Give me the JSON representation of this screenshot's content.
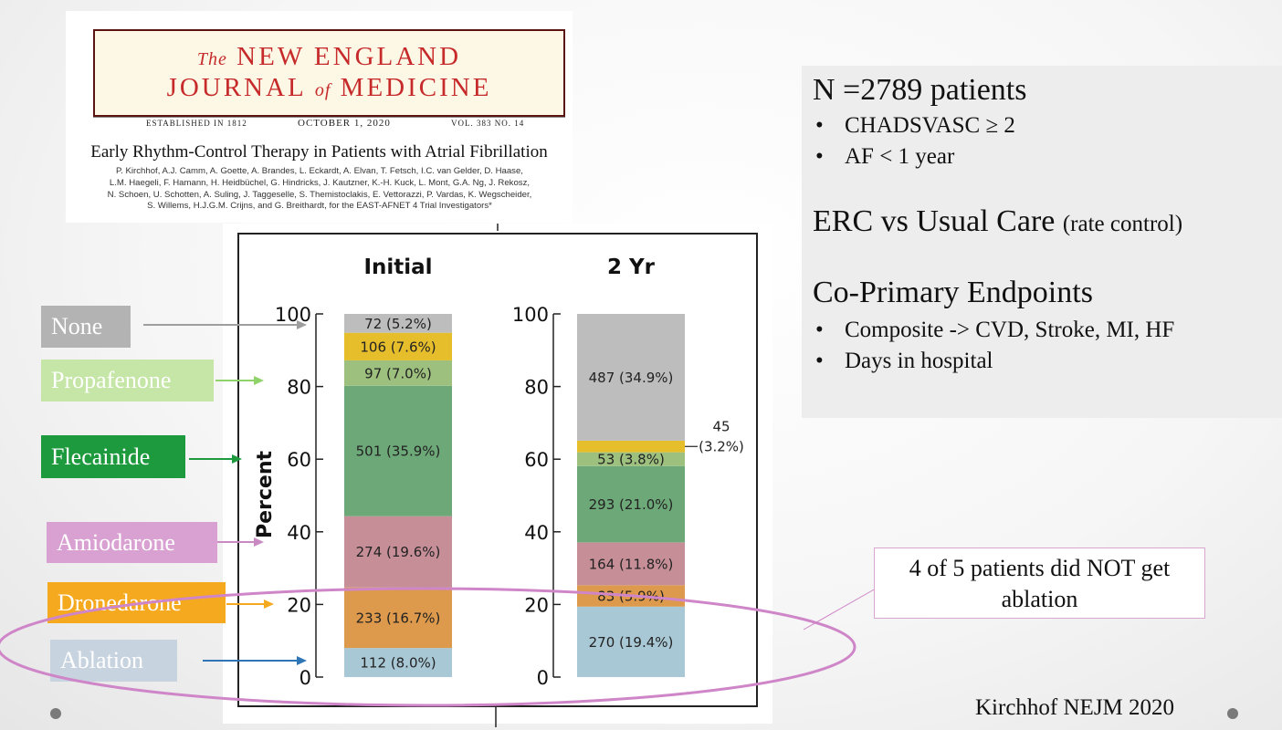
{
  "journal": {
    "masthead_the": "The",
    "masthead_name": "NEW ENGLAND",
    "masthead_journal": "JOURNAL",
    "masthead_of": "of",
    "masthead_medicine": "MEDICINE",
    "established": "ESTABLISHED IN 1812",
    "date": "OCTOBER 1, 2020",
    "volume": "VOL. 383   NO. 14",
    "article_title": "Early Rhythm-Control Therapy in Patients with Atrial Fibrillation",
    "authors": [
      "P. Kirchhof, A.J. Camm, A. Goette, A. Brandes, L. Eckardt, A. Elvan, T. Fetsch, I.C. van Gelder, D. Haase,",
      "L.M. Haegeli, F. Hamann, H. Heidbüchel, G. Hindricks, J. Kautzner, K.-H. Kuck, L. Mont, G.A. Ng, J. Rekosz,",
      "N. Schoen, U. Schotten, A. Suling, J. Taggeselle, S. Themistoclakis, E. Vettorazzi, P. Vardas, K. Wegscheider,",
      "S. Willems, H.J.G.M. Crijns, and G. Breithardt, for the EAST-AFNET 4 Trial Investigators*"
    ]
  },
  "legend_labels": [
    {
      "label": "None",
      "bg": "#b3b3b3",
      "arrow": "#9e9e9e"
    },
    {
      "label": "Propafenone",
      "bg": "#c5e6a6",
      "arrow": "#8fd36a"
    },
    {
      "label": "Flecainide",
      "bg": "#1e9a3e",
      "arrow": "#1e9a3e"
    },
    {
      "label": "Amiodarone",
      "bg": "#d9a1d2",
      "arrow": "#c98ac2"
    },
    {
      "label": "Dronedarone",
      "bg": "#f5a91f",
      "arrow": "#f5a91f"
    },
    {
      "label": "Ablation",
      "bg": "#c8d3e0",
      "arrow": "#2e75b6"
    }
  ],
  "chart_data": {
    "type": "bar",
    "stacked": true,
    "categories": [
      "Initial",
      "2 Yr"
    ],
    "ylabel": "Percent",
    "ylim": [
      0,
      100
    ],
    "yticks": [
      0,
      20,
      40,
      60,
      80,
      100
    ],
    "series": [
      {
        "color": "#a9c8d6",
        "values": [
          8.0,
          19.4
        ],
        "labels": [
          "112 (8.0%)",
          "270 (19.4%)"
        ]
      },
      {
        "color": "#de9a4c",
        "values": [
          16.7,
          5.9
        ],
        "labels": [
          "233 (16.7%)",
          "83 (5.9%)"
        ]
      },
      {
        "color": "#c68f98",
        "values": [
          19.6,
          11.8
        ],
        "labels": [
          "274 (19.6%)",
          "164 (11.8%)"
        ]
      },
      {
        "color": "#6da878",
        "values": [
          35.9,
          21.0
        ],
        "labels": [
          "501 (35.9%)",
          "293 (21.0%)"
        ]
      },
      {
        "color": "#9dc07e",
        "values": [
          7.0,
          3.8
        ],
        "labels": [
          "97 (7.0%)",
          "53 (3.8%)"
        ]
      },
      {
        "color": "#e6be2c",
        "values": [
          7.6,
          3.2
        ],
        "labels": [
          "106 (7.6%)",
          ""
        ]
      },
      {
        "color": "#bdbdbd",
        "values": [
          5.2,
          34.9
        ],
        "labels": [
          "72 (5.2%)",
          "487 (34.9%)"
        ]
      }
    ],
    "annotation": {
      "line1": "45",
      "line2": "(3.2%)"
    }
  },
  "info": {
    "n_title": "N =2789 patients",
    "bullets1": [
      "CHADSVASC ≥ 2",
      "AF < 1 year"
    ],
    "erc_main": "ERC vs Usual Care",
    "erc_sub": "(rate control)",
    "cop_title": "Co-Primary Endpoints",
    "bullets2": [
      "Composite ->  CVD, Stroke, MI, HF",
      "Days in hospital"
    ]
  },
  "callout": {
    "line1": "4 of 5 patients did NOT get",
    "line2": "ablation"
  },
  "citation": "Kirchhof NEJM 2020",
  "colors": {
    "ellipse": "#cf86c8",
    "frame": "#222222"
  }
}
